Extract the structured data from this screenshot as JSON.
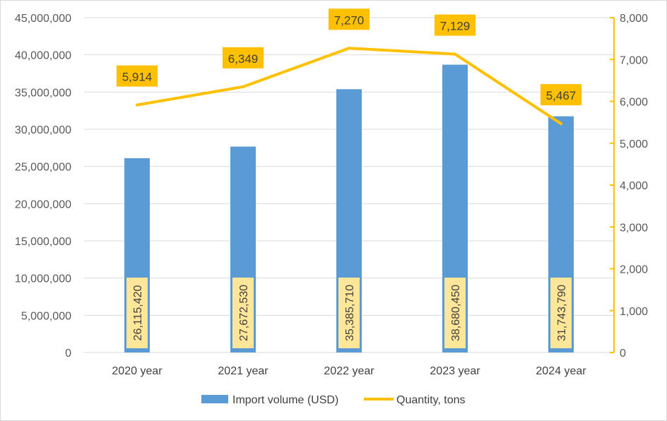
{
  "chart_data": {
    "type": "bar",
    "categories": [
      "2020 year",
      "2021 year",
      "2022 year",
      "2023 year",
      "2024 year"
    ],
    "series": [
      {
        "name": "Import volume (USD)",
        "type": "bar",
        "axis": "left",
        "color": "#5b9bd5",
        "values": [
          26115420,
          27672530,
          35385710,
          38680450,
          31743790
        ],
        "labels": [
          "26,115,420",
          "27,672,530",
          "35,385,710",
          "38,680,450",
          "31,743,790"
        ]
      },
      {
        "name": "Quantity, tons",
        "type": "line",
        "axis": "right",
        "color": "#ffc000",
        "values": [
          5914,
          6349,
          7270,
          7129,
          5467
        ],
        "labels": [
          "5,914",
          "6,349",
          "7,270",
          "7,129",
          "5,467"
        ]
      }
    ],
    "y_left": {
      "min": 0,
      "max": 45000000,
      "ticks": [
        0,
        5000000,
        10000000,
        15000000,
        20000000,
        25000000,
        30000000,
        35000000,
        40000000,
        45000000
      ],
      "tick_labels": [
        "0",
        "5,000,000",
        "10,000,000",
        "15,000,000",
        "20,000,000",
        "25,000,000",
        "30,000,000",
        "35,000,000",
        "40,000,000",
        "45,000,000"
      ]
    },
    "y_right": {
      "min": 0,
      "max": 8000,
      "ticks": [
        0,
        1000,
        2000,
        3000,
        4000,
        5000,
        6000,
        7000,
        8000
      ],
      "tick_labels": [
        "0",
        "1,000",
        "2,000",
        "3,000",
        "4,000",
        "5,000",
        "6,000",
        "7,000",
        "8,000"
      ],
      "color": "#ffc000"
    },
    "grid": true,
    "legend_position": "bottom",
    "label_fill_bar": "#ffe699",
    "label_fill_line": "#ffc000"
  }
}
